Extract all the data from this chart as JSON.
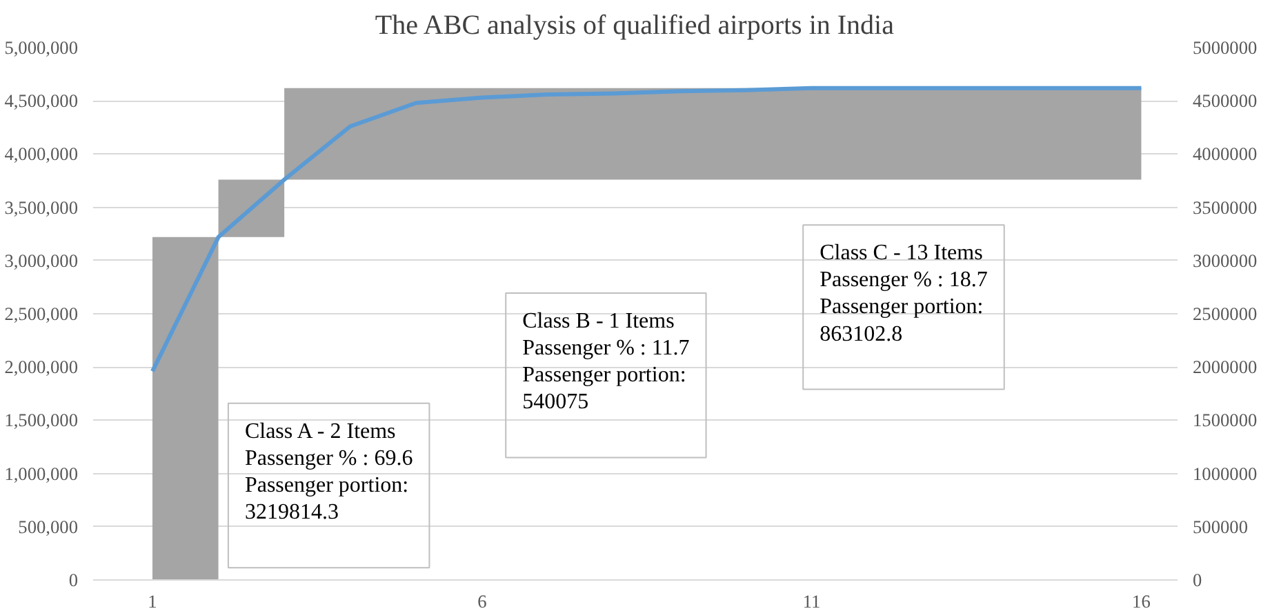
{
  "chart_data": {
    "type": "line",
    "title": "The ABC analysis of qualified airports in India",
    "series": [
      {
        "type": "histogram",
        "color": "#a5a5a5",
        "bins": [
          1,
          2,
          3,
          16
        ],
        "values": [
          3220000,
          540000,
          860000
        ],
        "base": [
          0,
          3220000,
          3760000
        ]
      },
      {
        "color": "#5b9bd5",
        "x": [
          1,
          2,
          3,
          4,
          5,
          6,
          7,
          8,
          9,
          10,
          11,
          12,
          13,
          14,
          15,
          16
        ],
        "values": [
          1960000,
          3220000,
          3760000,
          4260000,
          4480000,
          4530000,
          4560000,
          4570000,
          4590000,
          4600000,
          4620000,
          4620000,
          4620000,
          4620000,
          4620000,
          4620000
        ]
      }
    ],
    "xlim": [
      0.1,
      16.55
    ],
    "xticks": [
      1,
      6,
      11,
      16
    ],
    "ylim": [
      0,
      5000000
    ],
    "yticks": [
      {
        "value": 0,
        "label": "0"
      },
      {
        "value": 500000,
        "label": "500,000"
      },
      {
        "value": 1000000,
        "label": "1,000,000"
      },
      {
        "value": 1500000,
        "label": "1,500,000"
      },
      {
        "value": 2000000,
        "label": "2,000,000"
      },
      {
        "value": 2500000,
        "label": "2,500,000"
      },
      {
        "value": 3000000,
        "label": "3,000,000"
      },
      {
        "value": 3500000,
        "label": "3,500,000"
      },
      {
        "value": 4000000,
        "label": "4,000,000"
      },
      {
        "value": 4500000,
        "label": "4,500,000"
      },
      {
        "value": 5000000,
        "label": "5,000,000"
      }
    ],
    "y2lim": [
      0,
      5000000
    ],
    "y2ticks": [
      0,
      500000,
      1000000,
      1500000,
      2000000,
      2500000,
      3000000,
      3500000,
      4000000,
      4500000,
      5000000
    ],
    "annotations": [
      "Class A - 2 Items\nPassenger % : 69.6\nPassenger portion:\n3219814.3",
      "Class B - 1 Items\nPassenger % : 11.7\nPassenger portion:\n540075",
      "Class C - 13 Items\nPassenger % : 18.7\nPassenger portion:\n863102.8"
    ],
    "grid": "y"
  }
}
